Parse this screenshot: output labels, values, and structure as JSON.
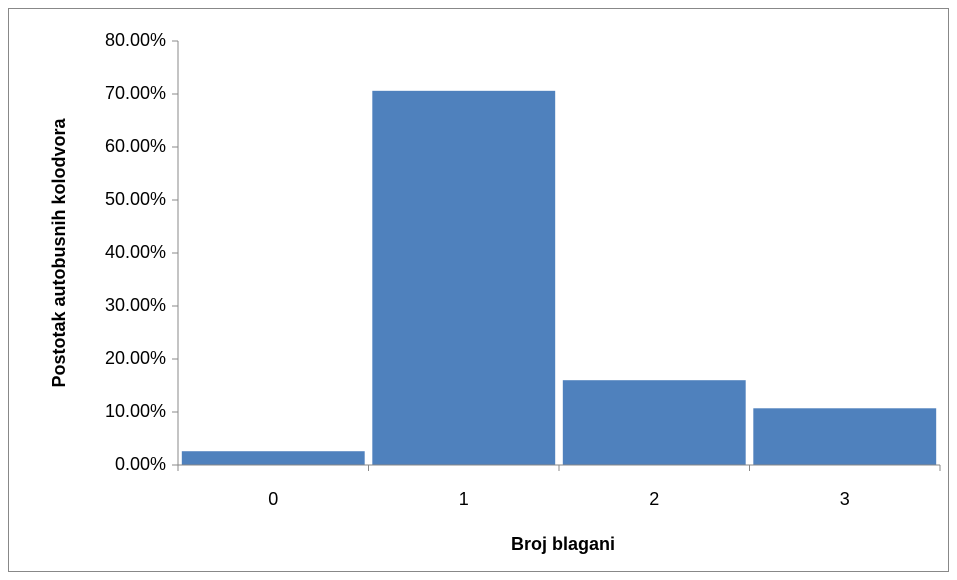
{
  "chart_data": {
    "type": "bar",
    "x_label": "Broj blagani",
    "y_label": "Postotak autobusnih kolodvora",
    "categories": [
      "0",
      "1",
      "2",
      "3"
    ],
    "values": [
      2.6,
      70.6,
      16.0,
      10.7
    ],
    "color": "#4f81bd",
    "ylim": [
      0,
      80
    ],
    "yticks": [
      {
        "value": 0,
        "label": "0.00%"
      },
      {
        "value": 10,
        "label": "10.00%"
      },
      {
        "value": 20,
        "label": "20.00%"
      },
      {
        "value": 30,
        "label": "30.00%"
      },
      {
        "value": 40,
        "label": "40.00%"
      },
      {
        "value": 50,
        "label": "50.00%"
      },
      {
        "value": 60,
        "label": "60.00%"
      },
      {
        "value": 70,
        "label": "70.00%"
      },
      {
        "value": 80,
        "label": "80.00%"
      }
    ],
    "grid": false
  }
}
